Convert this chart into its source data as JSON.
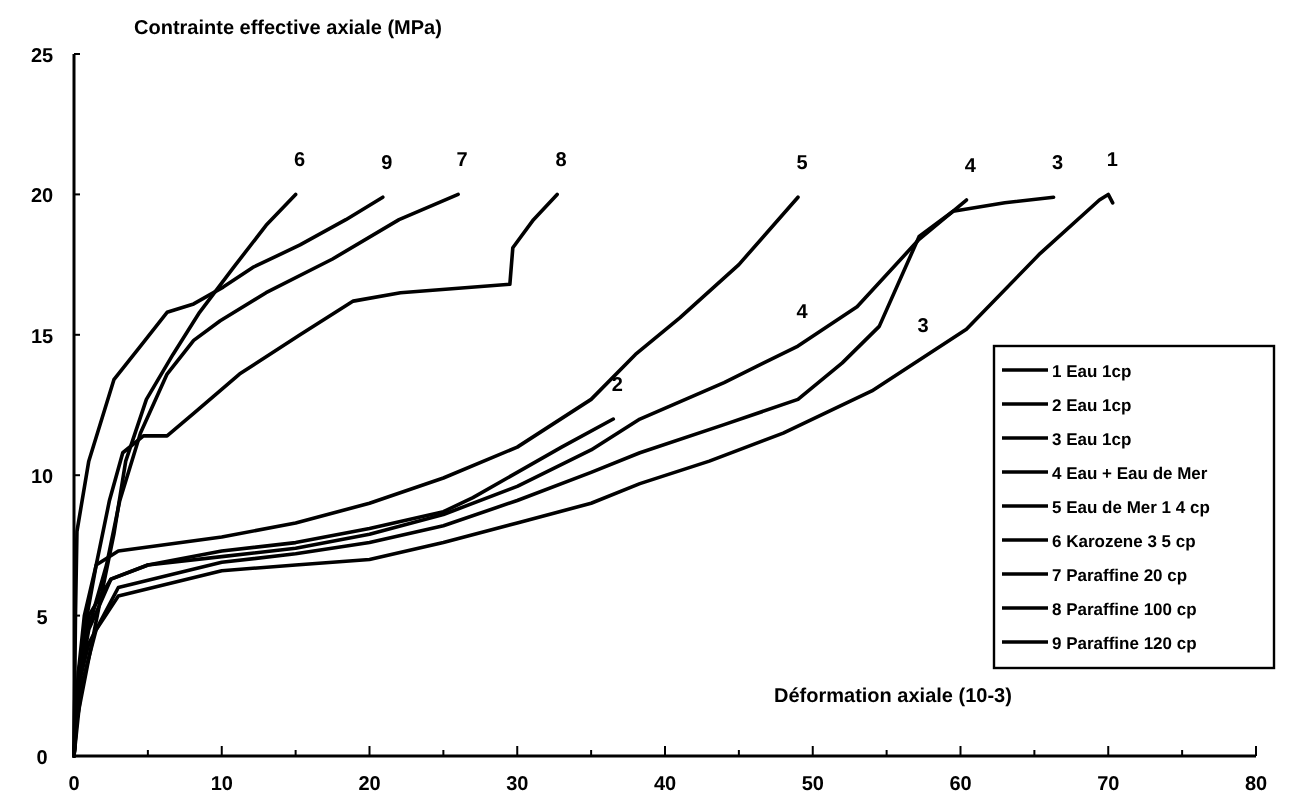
{
  "chart_data": {
    "type": "line",
    "ylabel": "Contrainte effective axiale (MPa)",
    "xlabel": "Déformation axiale (10-3)",
    "xlim": [
      0,
      80
    ],
    "ylim": [
      0,
      25
    ],
    "xticks": [
      0,
      {
        "value": 5,
        "label": null
      },
      10,
      {
        "value": 15,
        "label": null
      },
      20,
      {
        "value": 25,
        "label": null
      },
      30,
      {
        "value": 35,
        "label": null
      },
      40,
      {
        "value": 45,
        "label": null
      },
      50,
      {
        "value": 55,
        "label": null
      },
      60,
      {
        "value": 65,
        "label": null
      },
      70,
      {
        "value": 75,
        "label": null
      },
      80
    ],
    "yticks": [
      0,
      5,
      10,
      15,
      20,
      25
    ],
    "grid": false,
    "legend": "right",
    "marker": "none",
    "line_style": "solid",
    "series": [
      {
        "name": "1 Eau 1cp",
        "color": "#000000",
        "x": [
          0,
          0.5,
          1.5,
          3,
          10,
          15,
          20,
          25,
          30,
          35,
          38.3,
          43,
          48,
          54,
          60.4,
          65.4,
          69.4,
          70,
          70.3
        ],
        "values": [
          0,
          2.5,
          4.5,
          5.7,
          6.6,
          6.8,
          7,
          7.6,
          8.3,
          9,
          9.7,
          10.5,
          11.5,
          13,
          15.2,
          17.9,
          19.8,
          20,
          19.7
        ]
      },
      {
        "name": "2 Eau 1cp",
        "color": "#000000",
        "x": [
          0,
          0.3,
          1,
          2.5,
          5,
          10,
          15,
          20,
          25,
          27,
          30,
          33,
          36.5
        ],
        "values": [
          0,
          3,
          5,
          6.3,
          6.8,
          7.3,
          7.6,
          8.1,
          8.7,
          9.2,
          10.1,
          11,
          12
        ]
      },
      {
        "name": "3 Eau 1cp",
        "color": "#000000",
        "x": [
          0,
          0.3,
          1,
          3,
          10,
          15,
          20,
          25,
          30,
          35,
          38.3,
          44,
          49,
          52,
          54.5,
          57.2,
          59.5,
          63,
          66.3
        ],
        "values": [
          0,
          2.5,
          4,
          6,
          6.9,
          7.2,
          7.6,
          8.2,
          9.1,
          10.1,
          10.8,
          11.8,
          12.7,
          14,
          15.3,
          18.5,
          19.4,
          19.7,
          19.9
        ]
      },
      {
        "name": "4 Eau + Eau de Mer",
        "color": "#000000",
        "x": [
          0,
          0.3,
          1,
          2.5,
          5,
          10,
          15,
          20,
          25,
          30,
          35,
          38.3,
          44,
          49,
          53,
          57.2,
          60.4
        ],
        "values": [
          0,
          2.5,
          4.5,
          6.3,
          6.8,
          7.1,
          7.4,
          7.9,
          8.6,
          9.6,
          10.9,
          12,
          13.3,
          14.6,
          16,
          18.4,
          19.8
        ]
      },
      {
        "name": "5 Eau de Mer 1 4 cp",
        "color": "#000000",
        "x": [
          0,
          0.3,
          0.7,
          1.5,
          3,
          10,
          15,
          20,
          25,
          30,
          35,
          38,
          41,
          45,
          49
        ],
        "values": [
          0,
          3,
          5,
          6.8,
          7.3,
          7.8,
          8.3,
          9,
          9.9,
          11,
          12.7,
          14.3,
          15.6,
          17.5,
          19.9
        ]
      },
      {
        "name": "6 Karozene 3 5 cp",
        "color": "#000000",
        "x": [
          0,
          0.2,
          0.9,
          1.8,
          2.7,
          3.5,
          4.9,
          6.7,
          8.5,
          10.8,
          13,
          15
        ],
        "values": [
          0,
          1.3,
          3.2,
          5.6,
          7.9,
          10.5,
          12.7,
          14.3,
          15.8,
          17.4,
          18.9,
          20
        ]
      },
      {
        "name": "7 Paraffine  20 cp",
        "color": "#000000",
        "x": [
          0,
          0.05,
          0.9,
          2.2,
          3.1,
          4.5,
          6.3,
          8.1,
          9.9,
          13,
          17.5,
          22,
          26
        ],
        "values": [
          0,
          2,
          4.4,
          6.8,
          9.1,
          11.5,
          13.6,
          14.8,
          15.5,
          16.5,
          17.7,
          19.1,
          20
        ]
      },
      {
        "name": "8 Paraffine 100 cp",
        "color": "#000000",
        "x": [
          0,
          0.6,
          1.5,
          2.4,
          3.3,
          4.7,
          6.3,
          8.1,
          11.2,
          15.3,
          18.9,
          22.1,
          29.5,
          29.7,
          31.1,
          32.7
        ],
        "values": [
          0,
          4.2,
          6.8,
          9.1,
          10.8,
          11.4,
          11.4,
          12.2,
          13.6,
          15,
          16.2,
          16.5,
          16.8,
          18.1,
          19.1,
          20
        ]
      },
      {
        "name": "9 Paraffine 120 cp",
        "color": "#000000",
        "x": [
          0,
          0.1,
          0.2,
          1,
          2.7,
          4.5,
          6.3,
          8.1,
          10.1,
          12.1,
          15.3,
          18.4,
          20.9
        ],
        "values": [
          0,
          5,
          8,
          10.5,
          13.4,
          14.6,
          15.8,
          16.1,
          16.7,
          17.4,
          18.2,
          19.1,
          19.9
        ]
      }
    ],
    "annotations": [
      {
        "text": "6",
        "x": 15,
        "y": 20
      },
      {
        "text": "9",
        "x": 20.9,
        "y": 19.9
      },
      {
        "text": "7",
        "x": 26,
        "y": 20
      },
      {
        "text": "8",
        "x": 32.7,
        "y": 20
      },
      {
        "text": "5",
        "x": 49,
        "y": 19.9
      },
      {
        "text": "4",
        "x": 60.4,
        "y": 19.8
      },
      {
        "text": "3",
        "x": 66.3,
        "y": 19.9
      },
      {
        "text": "1",
        "x": 70,
        "y": 20
      },
      {
        "text": "4",
        "x": 49,
        "y": 14.6
      },
      {
        "text": "3",
        "x": 57.2,
        "y": 14.1
      },
      {
        "text": "2",
        "x": 36.5,
        "y": 12
      }
    ]
  }
}
